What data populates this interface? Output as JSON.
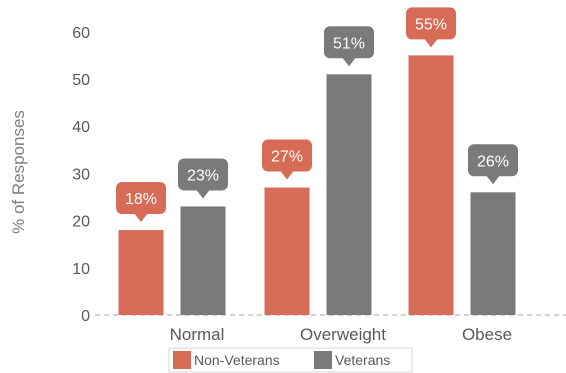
{
  "chart_data": {
    "type": "bar",
    "categories": [
      "Normal",
      "Overweight",
      "Obese"
    ],
    "series": [
      {
        "name": "Non-Veterans",
        "values": [
          18,
          27,
          55
        ],
        "labels": [
          "18%",
          "27%",
          "55%"
        ],
        "color": "#d86b55"
      },
      {
        "name": "Veterans",
        "values": [
          23,
          51,
          26
        ],
        "labels": [
          "23%",
          "51%",
          "26%"
        ],
        "color": "#7a7a7a"
      }
    ],
    "title": "",
    "xlabel": "",
    "ylabel": "% of Responses",
    "ylim": [
      0,
      60
    ],
    "yticks": [
      "0",
      "10",
      "20",
      "30",
      "40",
      "50",
      "60"
    ],
    "grid": false,
    "legend": "bottom-center"
  }
}
